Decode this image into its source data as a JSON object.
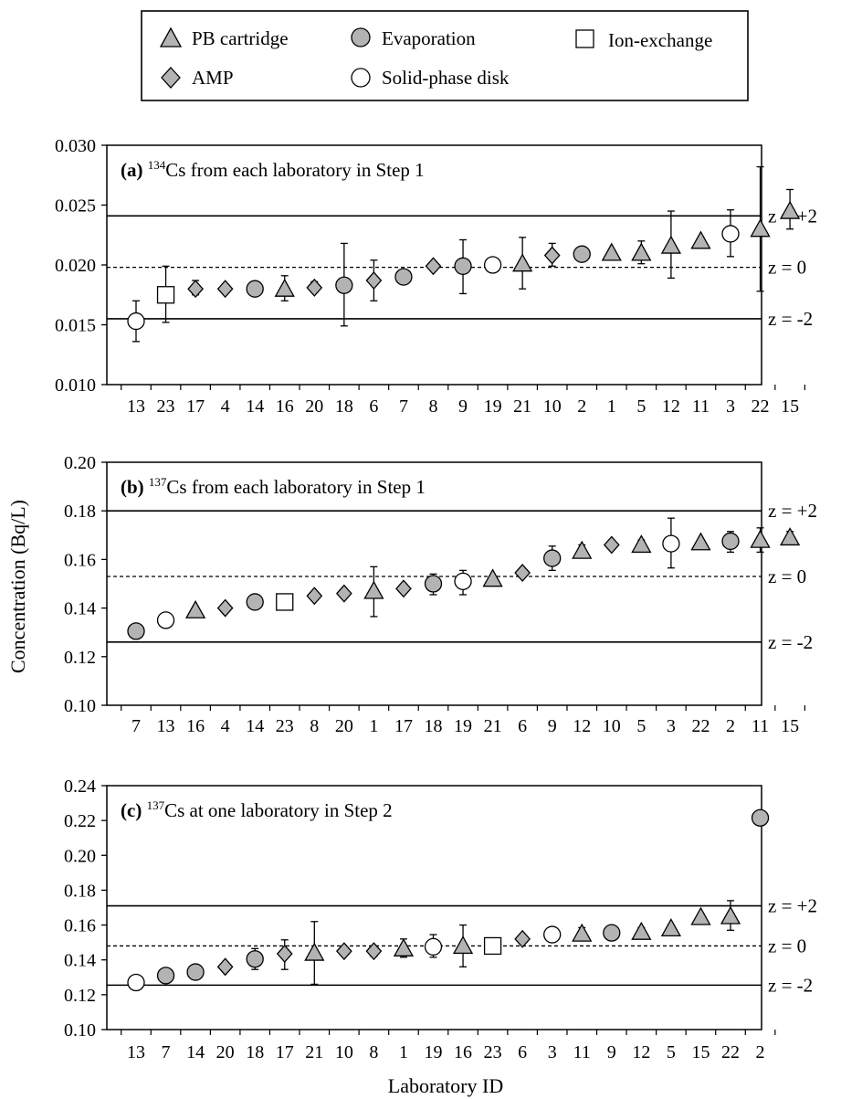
{
  "legend": {
    "entries": [
      {
        "key": "pb",
        "label": "PB cartridge"
      },
      {
        "key": "evap",
        "label": "Evaporation"
      },
      {
        "key": "ion",
        "label": "Ion-exchange"
      },
      {
        "key": "amp",
        "label": "AMP"
      },
      {
        "key": "spd",
        "label": "Solid-phase disk"
      }
    ]
  },
  "shared_ylabel": "Concentration (Bq/L)",
  "shared_xlabel": "Laboratory ID",
  "colors": {
    "marker_fill": "#b3b3b3",
    "open_fill": "#ffffff",
    "stroke": "#000000"
  },
  "chart_data": [
    {
      "type": "scatter",
      "panel": "(a)",
      "title_prefix": "134",
      "title": "Cs from each laboratory in Step 1",
      "ylim": [
        0.01,
        0.03
      ],
      "yticks": [
        0.01,
        0.015,
        0.02,
        0.025,
        0.03
      ],
      "ytick_labels": [
        "0.010",
        "0.015",
        "0.020",
        "0.025",
        "0.030"
      ],
      "ref_lines": [
        {
          "label": "z = +2",
          "y": 0.0241,
          "style": "solid"
        },
        {
          "label": "z = 0",
          "y": 0.0198,
          "style": "dashed"
        },
        {
          "label": "z = -2",
          "y": 0.0155,
          "style": "solid"
        }
      ],
      "points": [
        {
          "id": "13",
          "method": "spd",
          "y": 0.0153,
          "lo": 0.0136,
          "hi": 0.017
        },
        {
          "id": "23",
          "method": "ion",
          "y": 0.0175,
          "lo": 0.0152,
          "hi": 0.0199
        },
        {
          "id": "17",
          "method": "amp",
          "y": 0.018,
          "lo": 0.0175,
          "hi": 0.0187
        },
        {
          "id": "4",
          "method": "amp",
          "y": 0.018,
          "lo": 0.018,
          "hi": 0.018
        },
        {
          "id": "14",
          "method": "evap",
          "y": 0.018,
          "lo": 0.018,
          "hi": 0.018
        },
        {
          "id": "16",
          "method": "pb",
          "y": 0.018,
          "lo": 0.017,
          "hi": 0.0191
        },
        {
          "id": "20",
          "method": "amp",
          "y": 0.0181,
          "lo": 0.0177,
          "hi": 0.0186
        },
        {
          "id": "18",
          "method": "evap",
          "y": 0.0183,
          "lo": 0.0149,
          "hi": 0.0218
        },
        {
          "id": "6",
          "method": "amp",
          "y": 0.0187,
          "lo": 0.017,
          "hi": 0.0204
        },
        {
          "id": "7",
          "method": "evap",
          "y": 0.019,
          "lo": 0.019,
          "hi": 0.019
        },
        {
          "id": "8",
          "method": "amp",
          "y": 0.0199,
          "lo": 0.0199,
          "hi": 0.0199
        },
        {
          "id": "9",
          "method": "evap",
          "y": 0.0199,
          "lo": 0.0176,
          "hi": 0.0221
        },
        {
          "id": "19",
          "method": "spd",
          "y": 0.02,
          "lo": 0.02,
          "hi": 0.02
        },
        {
          "id": "21",
          "method": "pb",
          "y": 0.0201,
          "lo": 0.018,
          "hi": 0.0223
        },
        {
          "id": "10",
          "method": "amp",
          "y": 0.0208,
          "lo": 0.0199,
          "hi": 0.0218
        },
        {
          "id": "2",
          "method": "evap",
          "y": 0.0209,
          "lo": 0.0207,
          "hi": 0.0211
        },
        {
          "id": "1",
          "method": "pb",
          "y": 0.021,
          "lo": 0.021,
          "hi": 0.021
        },
        {
          "id": "5",
          "method": "pb",
          "y": 0.021,
          "lo": 0.0201,
          "hi": 0.022
        },
        {
          "id": "12",
          "method": "pb",
          "y": 0.0216,
          "lo": 0.0189,
          "hi": 0.0245
        },
        {
          "id": "11",
          "method": "pb",
          "y": 0.022,
          "lo": 0.022,
          "hi": 0.022
        },
        {
          "id": "3",
          "method": "spd",
          "y": 0.0226,
          "lo": 0.0207,
          "hi": 0.0246
        },
        {
          "id": "22",
          "method": "pb",
          "y": 0.023,
          "lo": 0.0178,
          "hi": 0.0282
        },
        {
          "id": "15",
          "method": "pb",
          "y": 0.0245,
          "lo": 0.023,
          "hi": 0.0263
        }
      ]
    },
    {
      "type": "scatter",
      "panel": "(b)",
      "title_prefix": "137",
      "title": "Cs from each laboratory in Step 1",
      "ylim": [
        0.1,
        0.2
      ],
      "yticks": [
        0.1,
        0.12,
        0.14,
        0.16,
        0.18,
        0.2
      ],
      "ytick_labels": [
        "0.10",
        "0.12",
        "0.14",
        "0.16",
        "0.18",
        "0.20"
      ],
      "ref_lines": [
        {
          "label": "z = +2",
          "y": 0.18,
          "style": "solid"
        },
        {
          "label": "z = 0",
          "y": 0.153,
          "style": "dashed"
        },
        {
          "label": "z = -2",
          "y": 0.126,
          "style": "solid"
        }
      ],
      "points": [
        {
          "id": "7",
          "method": "evap",
          "y": 0.1305,
          "lo": 0.1295,
          "hi": 0.1315
        },
        {
          "id": "13",
          "method": "spd",
          "y": 0.135,
          "lo": 0.1325,
          "hi": 0.1375
        },
        {
          "id": "16",
          "method": "pb",
          "y": 0.139,
          "lo": 0.139,
          "hi": 0.139
        },
        {
          "id": "4",
          "method": "amp",
          "y": 0.14,
          "lo": 0.14,
          "hi": 0.14
        },
        {
          "id": "14",
          "method": "evap",
          "y": 0.1425,
          "lo": 0.1425,
          "hi": 0.1425
        },
        {
          "id": "23",
          "method": "ion",
          "y": 0.1425,
          "lo": 0.1395,
          "hi": 0.1455
        },
        {
          "id": "8",
          "method": "amp",
          "y": 0.145,
          "lo": 0.145,
          "hi": 0.145
        },
        {
          "id": "20",
          "method": "amp",
          "y": 0.146,
          "lo": 0.146,
          "hi": 0.146
        },
        {
          "id": "1",
          "method": "pb",
          "y": 0.147,
          "lo": 0.1365,
          "hi": 0.157
        },
        {
          "id": "17",
          "method": "amp",
          "y": 0.148,
          "lo": 0.1465,
          "hi": 0.1495
        },
        {
          "id": "18",
          "method": "evap",
          "y": 0.15,
          "lo": 0.1455,
          "hi": 0.154
        },
        {
          "id": "19",
          "method": "spd",
          "y": 0.151,
          "lo": 0.1455,
          "hi": 0.1555
        },
        {
          "id": "21",
          "method": "pb",
          "y": 0.152,
          "lo": 0.152,
          "hi": 0.152
        },
        {
          "id": "6",
          "method": "amp",
          "y": 0.1545,
          "lo": 0.1545,
          "hi": 0.1545
        },
        {
          "id": "9",
          "method": "evap",
          "y": 0.1605,
          "lo": 0.1555,
          "hi": 0.1655
        },
        {
          "id": "12",
          "method": "pb",
          "y": 0.1635,
          "lo": 0.1615,
          "hi": 0.166
        },
        {
          "id": "10",
          "method": "amp",
          "y": 0.166,
          "lo": 0.1645,
          "hi": 0.1675
        },
        {
          "id": "5",
          "method": "pb",
          "y": 0.166,
          "lo": 0.164,
          "hi": 0.168
        },
        {
          "id": "3",
          "method": "spd",
          "y": 0.1665,
          "lo": 0.1565,
          "hi": 0.177
        },
        {
          "id": "22",
          "method": "pb",
          "y": 0.167,
          "lo": 0.167,
          "hi": 0.167
        },
        {
          "id": "2",
          "method": "evap",
          "y": 0.1675,
          "lo": 0.163,
          "hi": 0.1715
        },
        {
          "id": "11",
          "method": "pb",
          "y": 0.168,
          "lo": 0.163,
          "hi": 0.173
        },
        {
          "id": "15",
          "method": "pb",
          "y": 0.169,
          "lo": 0.167,
          "hi": 0.1715
        }
      ]
    },
    {
      "type": "scatter",
      "panel": "(c)",
      "title_prefix": "137",
      "title": "Cs at one laboratory in Step 2",
      "ylim": [
        0.1,
        0.24
      ],
      "yticks": [
        0.1,
        0.12,
        0.14,
        0.16,
        0.18,
        0.2,
        0.22,
        0.24
      ],
      "ytick_labels": [
        "0.10",
        "0.12",
        "0.14",
        "0.16",
        "0.18",
        "0.20",
        "0.22",
        "0.24"
      ],
      "ref_lines": [
        {
          "label": "z = +2",
          "y": 0.171,
          "style": "solid"
        },
        {
          "label": "z = 0",
          "y": 0.148,
          "style": "dashed"
        },
        {
          "label": "z = -2",
          "y": 0.1255,
          "style": "solid"
        }
      ],
      "points": [
        {
          "id": "13",
          "method": "spd",
          "y": 0.127,
          "lo": 0.1235,
          "hi": 0.1305
        },
        {
          "id": "7",
          "method": "evap",
          "y": 0.131,
          "lo": 0.1285,
          "hi": 0.134
        },
        {
          "id": "14",
          "method": "evap",
          "y": 0.133,
          "lo": 0.133,
          "hi": 0.133
        },
        {
          "id": "20",
          "method": "amp",
          "y": 0.136,
          "lo": 0.136,
          "hi": 0.136
        },
        {
          "id": "18",
          "method": "evap",
          "y": 0.1405,
          "lo": 0.1345,
          "hi": 0.1465
        },
        {
          "id": "17",
          "method": "amp",
          "y": 0.1435,
          "lo": 0.1345,
          "hi": 0.1515
        },
        {
          "id": "21",
          "method": "pb",
          "y": 0.144,
          "lo": 0.126,
          "hi": 0.162
        },
        {
          "id": "10",
          "method": "amp",
          "y": 0.145,
          "lo": 0.145,
          "hi": 0.145
        },
        {
          "id": "8",
          "method": "amp",
          "y": 0.145,
          "lo": 0.142,
          "hi": 0.148
        },
        {
          "id": "1",
          "method": "pb",
          "y": 0.1465,
          "lo": 0.1415,
          "hi": 0.152
        },
        {
          "id": "19",
          "method": "spd",
          "y": 0.1475,
          "lo": 0.1415,
          "hi": 0.1545
        },
        {
          "id": "16",
          "method": "pb",
          "y": 0.148,
          "lo": 0.136,
          "hi": 0.16
        },
        {
          "id": "23",
          "method": "ion",
          "y": 0.148,
          "lo": 0.144,
          "hi": 0.152
        },
        {
          "id": "6",
          "method": "amp",
          "y": 0.152,
          "lo": 0.152,
          "hi": 0.152
        },
        {
          "id": "3",
          "method": "spd",
          "y": 0.1545,
          "lo": 0.1545,
          "hi": 0.1545
        },
        {
          "id": "11",
          "method": "pb",
          "y": 0.155,
          "lo": 0.152,
          "hi": 0.1585
        },
        {
          "id": "9",
          "method": "evap",
          "y": 0.1555,
          "lo": 0.1555,
          "hi": 0.1555
        },
        {
          "id": "12",
          "method": "pb",
          "y": 0.156,
          "lo": 0.1535,
          "hi": 0.1585
        },
        {
          "id": "5",
          "method": "pb",
          "y": 0.158,
          "lo": 0.156,
          "hi": 0.16
        },
        {
          "id": "15",
          "method": "pb",
          "y": 0.1645,
          "lo": 0.1625,
          "hi": 0.1665
        },
        {
          "id": "22",
          "method": "pb",
          "y": 0.165,
          "lo": 0.157,
          "hi": 0.174
        },
        {
          "id": "2",
          "method": "evap",
          "y": 0.2215,
          "lo": 0.2195,
          "hi": 0.2235
        }
      ]
    }
  ]
}
